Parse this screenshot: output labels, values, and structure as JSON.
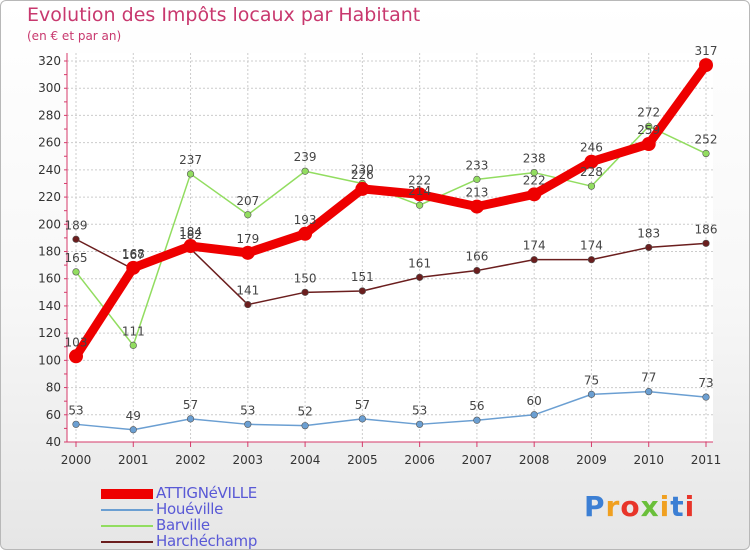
{
  "title": "Evolution des Impôts locaux par Habitant",
  "subtitle": "(en € et par an)",
  "brand": "Proxiti",
  "chart_data": {
    "type": "line",
    "title": "Evolution des Impôts locaux par Habitant",
    "subtitle": "(en € et par an)",
    "xlabel": "",
    "ylabel": "",
    "ylim": [
      40,
      320
    ],
    "yticks": [
      40,
      60,
      80,
      100,
      120,
      140,
      160,
      180,
      200,
      220,
      240,
      260,
      280,
      300,
      320
    ],
    "grid": true,
    "legend_position": "bottom-left",
    "categories": [
      "2000",
      "2001",
      "2002",
      "2003",
      "2004",
      "2005",
      "2006",
      "2007",
      "2008",
      "2009",
      "2010",
      "2011"
    ],
    "series": [
      {
        "name": "ATTIGNéVILLE",
        "color": "#ee0000",
        "values": [
          103,
          168,
          184,
          179,
          193,
          226,
          222,
          213,
          222,
          246,
          259,
          317
        ]
      },
      {
        "name": "Houéville",
        "color": "#6b9fd2",
        "values": [
          53,
          49,
          57,
          53,
          52,
          57,
          53,
          56,
          60,
          75,
          77,
          73
        ]
      },
      {
        "name": "Barville",
        "color": "#92dd60",
        "values": [
          165,
          111,
          237,
          207,
          239,
          230,
          214,
          233,
          238,
          228,
          272,
          252
        ]
      },
      {
        "name": "Harchéchamp",
        "color": "#6b1e1e",
        "values": [
          189,
          167,
          182,
          141,
          150,
          151,
          161,
          166,
          174,
          174,
          183,
          186
        ]
      }
    ]
  }
}
